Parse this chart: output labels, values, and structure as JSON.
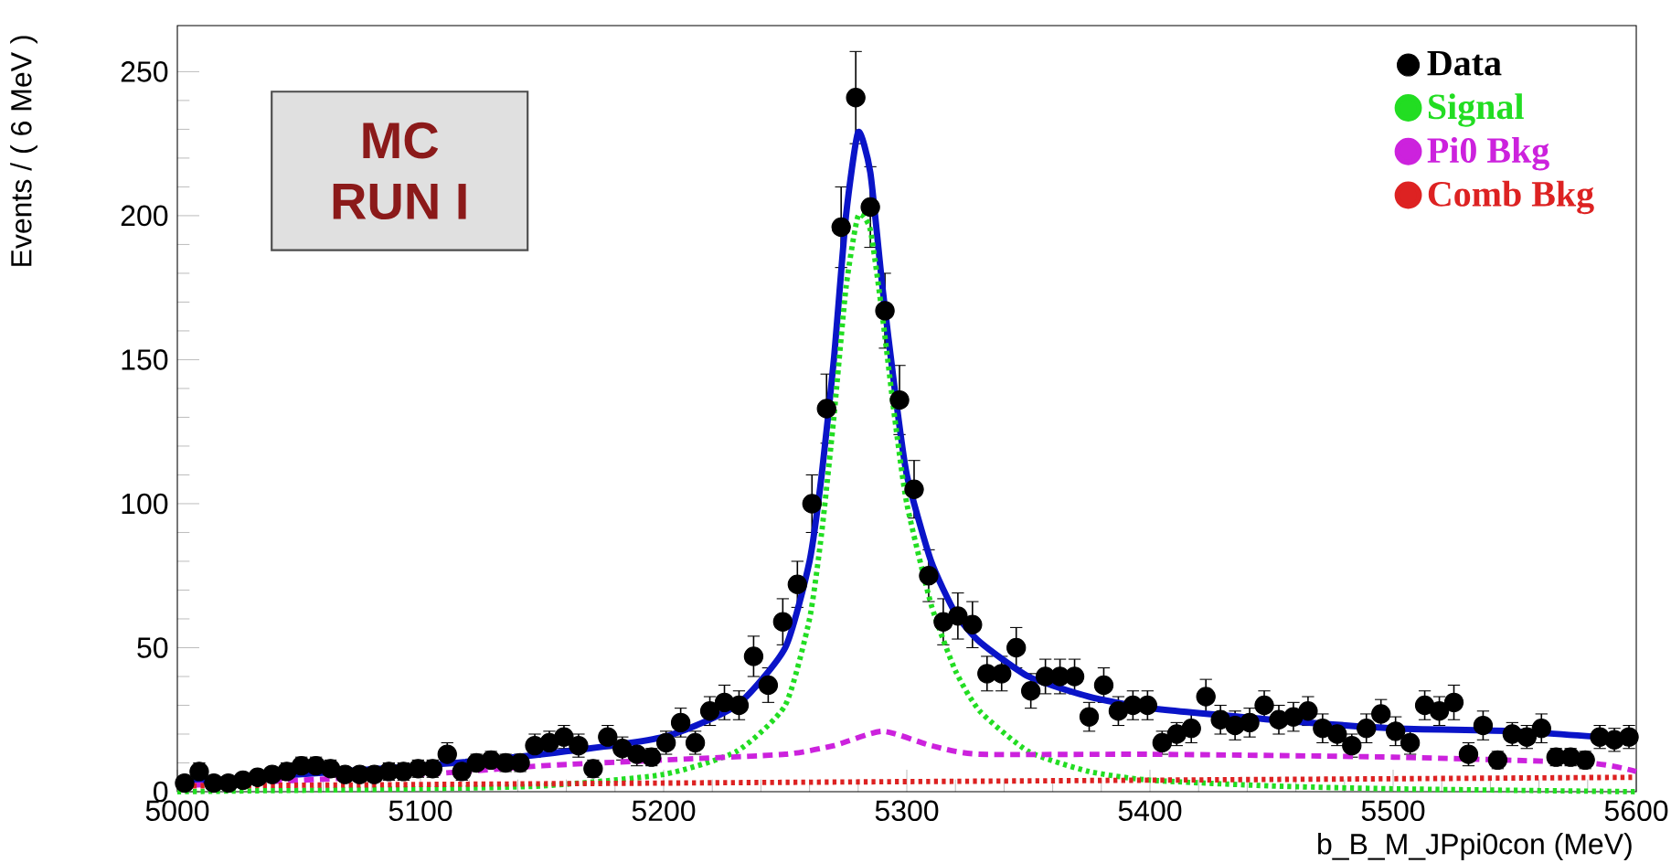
{
  "chart_data": {
    "type": "scatter",
    "xlabel": "b_B_M_JPpi0con (MeV)",
    "ylabel": "Events / ( 6 MeV )",
    "annotations": [
      "MC",
      "RUN I"
    ],
    "xlim": [
      5000,
      5600
    ],
    "ylim": [
      0,
      266
    ],
    "xticks": [
      5000,
      5100,
      5200,
      5300,
      5400,
      5500,
      5600
    ],
    "yticks": [
      0,
      50,
      100,
      150,
      200,
      250
    ],
    "grid": false,
    "legend": "top right",
    "series": [
      {
        "name": "Data",
        "marker": "circle",
        "color": "#000000",
        "x": [
          5003,
          5009,
          5015,
          5021,
          5027,
          5033,
          5039,
          5045,
          5051,
          5057,
          5063,
          5069,
          5075,
          5081,
          5087,
          5093,
          5099,
          5105,
          5111,
          5117,
          5123,
          5129,
          5135,
          5141,
          5147,
          5153,
          5159,
          5165,
          5171,
          5177,
          5183,
          5189,
          5195,
          5201,
          5207,
          5213,
          5219,
          5225,
          5231,
          5237,
          5243,
          5249,
          5255,
          5261,
          5267,
          5273,
          5279,
          5285,
          5291,
          5297,
          5303,
          5309,
          5315,
          5321,
          5327,
          5333,
          5339,
          5345,
          5351,
          5357,
          5363,
          5369,
          5375,
          5381,
          5387,
          5393,
          5399,
          5405,
          5411,
          5417,
          5423,
          5429,
          5435,
          5441,
          5447,
          5453,
          5459,
          5465,
          5471,
          5477,
          5483,
          5489,
          5495,
          5501,
          5507,
          5513,
          5519,
          5525,
          5531,
          5537,
          5543,
          5549,
          5555,
          5561,
          5567,
          5573,
          5579,
          5585,
          5591,
          5597
        ],
        "values": [
          3,
          7,
          3,
          3,
          4,
          5,
          6,
          7,
          9,
          9,
          8,
          6,
          6,
          6,
          7,
          7,
          8,
          8,
          13,
          7,
          10,
          11,
          10,
          10,
          16,
          17,
          19,
          16,
          8,
          19,
          15,
          13,
          12,
          17,
          24,
          17,
          28,
          31,
          30,
          47,
          37,
          59,
          72,
          100,
          133,
          196,
          241,
          203,
          167,
          136,
          105,
          75,
          59,
          61,
          58,
          41,
          41,
          50,
          35,
          40,
          40,
          40,
          26,
          37,
          28,
          30,
          30,
          17,
          20,
          22,
          33,
          25,
          23,
          24,
          30,
          25,
          26,
          28,
          22,
          20,
          16,
          22,
          27,
          21,
          17,
          30,
          28,
          31,
          13,
          23,
          11,
          20,
          19,
          22,
          12,
          12,
          11,
          19,
          18,
          19
        ],
        "errors": [
          2,
          3,
          2,
          2,
          2,
          2,
          2,
          3,
          3,
          3,
          3,
          2,
          2,
          2,
          3,
          3,
          3,
          3,
          4,
          3,
          3,
          3,
          3,
          3,
          4,
          4,
          4,
          4,
          3,
          4,
          4,
          4,
          3,
          4,
          5,
          4,
          5,
          6,
          5,
          7,
          6,
          8,
          8,
          10,
          12,
          14,
          16,
          14,
          13,
          12,
          10,
          9,
          8,
          8,
          8,
          6,
          6,
          7,
          6,
          6,
          6,
          6,
          5,
          6,
          5,
          5,
          5,
          4,
          4,
          5,
          6,
          5,
          5,
          5,
          5,
          5,
          5,
          5,
          5,
          4,
          4,
          5,
          5,
          5,
          4,
          5,
          5,
          6,
          4,
          5,
          3,
          4,
          4,
          5,
          3,
          3,
          3,
          4,
          4,
          4
        ]
      },
      {
        "type": "line",
        "line_style": "solid",
        "color": "#0a14c8",
        "x": [
          5000,
          5050,
          5100,
          5150,
          5200,
          5230,
          5250,
          5260,
          5265,
          5270,
          5275,
          5280,
          5285,
          5290,
          5295,
          5300,
          5310,
          5320,
          5330,
          5350,
          5375,
          5400,
          5450,
          5500,
          5550,
          5600
        ],
        "values": [
          3,
          6,
          9,
          13,
          19,
          30,
          50,
          80,
          110,
          150,
          200,
          229,
          215,
          175,
          140,
          110,
          80,
          62,
          52,
          40,
          33,
          29,
          25,
          22,
          21,
          18
        ]
      },
      {
        "name": "Signal",
        "type": "line",
        "line_style": "dotted",
        "color": "#22dd22",
        "x": [
          5000,
          5100,
          5150,
          5200,
          5230,
          5250,
          5260,
          5265,
          5270,
          5275,
          5280,
          5285,
          5290,
          5295,
          5300,
          5310,
          5320,
          5330,
          5350,
          5375,
          5400,
          5450,
          5500,
          5600
        ],
        "values": [
          0,
          1,
          2,
          6,
          14,
          30,
          60,
          90,
          130,
          175,
          200,
          195,
          165,
          130,
          100,
          65,
          42,
          28,
          14,
          7,
          4,
          2,
          1,
          0
        ]
      },
      {
        "name": "Pi0 Bkg",
        "type": "line",
        "line_style": "dashed",
        "color": "#cc22dd",
        "x": [
          5000,
          5100,
          5150,
          5200,
          5250,
          5270,
          5290,
          5310,
          5330,
          5400,
          5500,
          5580,
          5600
        ],
        "values": [
          2,
          6,
          9,
          11,
          13,
          16,
          21,
          16,
          13,
          13,
          12,
          10,
          7
        ]
      },
      {
        "name": "Comb Bkg",
        "type": "line",
        "line_style": "dotted",
        "color": "#dd2222",
        "x": [
          5000,
          5600
        ],
        "values": [
          2,
          5
        ]
      }
    ]
  }
}
